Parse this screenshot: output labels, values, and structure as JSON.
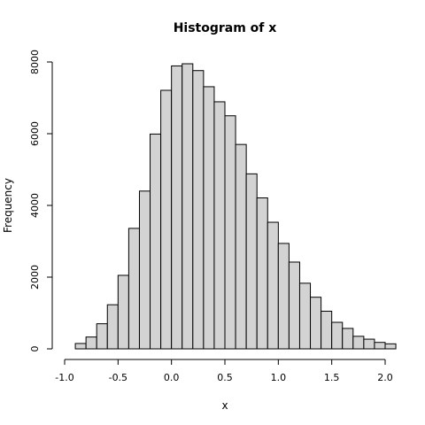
{
  "chart_data": {
    "type": "bar",
    "title": "Histogram of x",
    "xlabel": "x",
    "ylabel": "Frequency",
    "bin_width": 0.1,
    "bin_edges": [
      -0.9,
      -0.8,
      -0.7,
      -0.6,
      -0.5,
      -0.4,
      -0.3,
      -0.2,
      -0.1,
      0.0,
      0.1,
      0.2,
      0.3,
      0.4,
      0.5,
      0.6,
      0.7,
      0.8,
      0.9,
      1.0,
      1.1,
      1.2,
      1.3,
      1.4,
      1.5,
      1.6,
      1.7,
      1.8,
      1.9,
      2.0
    ],
    "values": [
      150,
      330,
      700,
      1230,
      2050,
      3360,
      4400,
      5990,
      7210,
      7890,
      7950,
      7760,
      7310,
      6890,
      6500,
      5700,
      4880,
      4210,
      3530,
      2940,
      2420,
      1830,
      1440,
      1050,
      740,
      570,
      350,
      270,
      180,
      140
    ],
    "x_ticks": [
      -1.0,
      -0.5,
      0.0,
      0.5,
      1.0,
      1.5,
      2.0
    ],
    "x_tick_labels": [
      "-1.0",
      "-0.5",
      "0.0",
      "0.5",
      "1.0",
      "1.5",
      "2.0"
    ],
    "y_ticks": [
      0,
      2000,
      4000,
      6000,
      8000
    ],
    "y_tick_labels": [
      "0",
      "2000",
      "4000",
      "6000",
      "8000"
    ],
    "xlim": [
      -1.0,
      2.0
    ],
    "ylim": [
      0,
      8000
    ],
    "grid": false,
    "colors": {
      "bar_fill": "#d3d3d3",
      "bar_stroke": "#000000",
      "axis": "#000000"
    }
  }
}
